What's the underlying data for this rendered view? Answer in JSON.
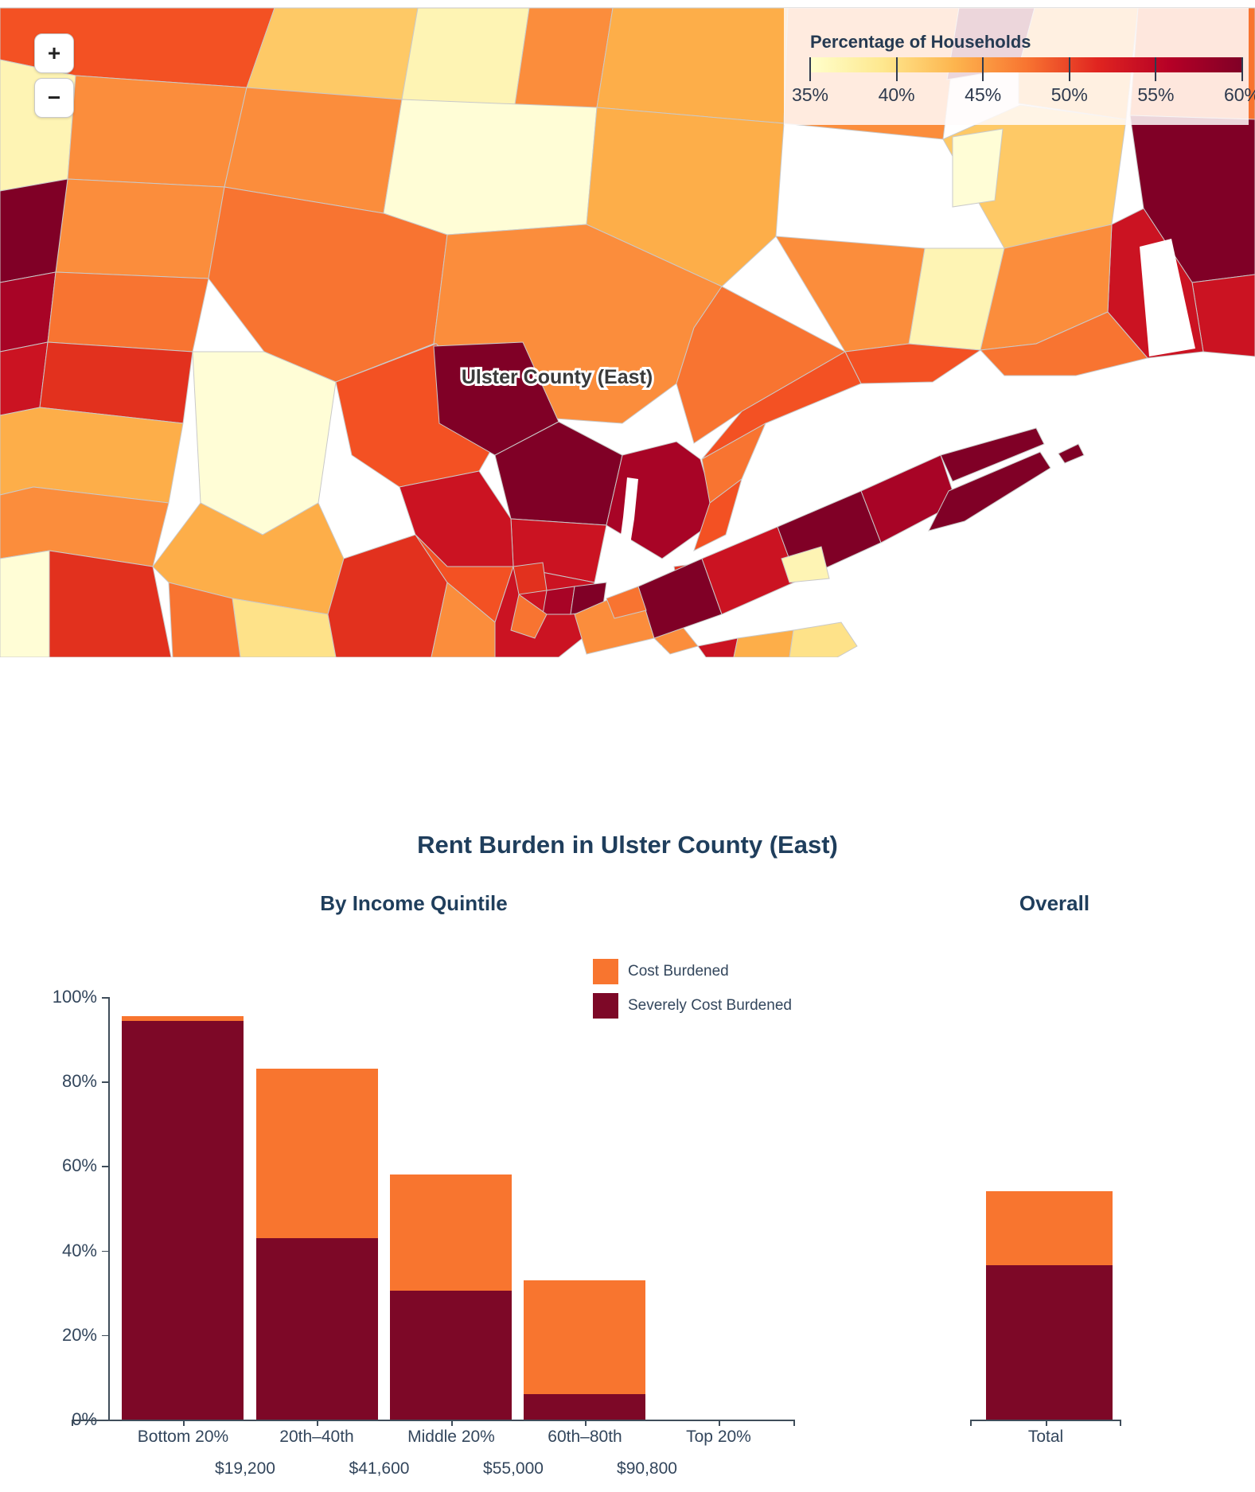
{
  "map": {
    "region_label": "Ulster County (East)",
    "zoom_in_label": "+",
    "zoom_out_label": "−",
    "legend": {
      "title": "Percentage of Households",
      "tick_labels": [
        "35%",
        "40%",
        "45%",
        "50%",
        "55%",
        "60%"
      ],
      "gradient_stops": [
        "#FFFFCC",
        "#FEE88F",
        "#FDB54E",
        "#F87531",
        "#E02420",
        "#B50026",
        "#800026"
      ]
    },
    "palette": {
      "C": "#FFFDD6",
      "PY": "#FEF4B4",
      "Y": "#FEE289",
      "LO": "#FEC966",
      "MO": "#FDAE49",
      "O": "#FB8D3C",
      "DO": "#F87431",
      "OR": "#F35123",
      "R": "#E2311E",
      "DR": "#CB1322",
      "CR": "#A80426",
      "M": "#800026",
      "W": "#FFFFFF"
    }
  },
  "chart": {
    "title": "Rent Burden in Ulster County (East)",
    "left_subtitle": "By Income Quintile",
    "right_subtitle": "Overall",
    "legend": [
      {
        "label": "Cost Burdened",
        "color": "#F8752F"
      },
      {
        "label": "Severely Cost Burdened",
        "color": "#7D0827"
      }
    ]
  },
  "chart_data": {
    "type": "bar",
    "stacked": true,
    "title": "Rent Burden in Ulster County (East)",
    "categories": [
      "Bottom 20%",
      "20th–40th",
      "Middle 20%",
      "60th–80th",
      "Top 20%"
    ],
    "income_boundary_labels": [
      "$19,200",
      "$41,600",
      "$55,000",
      "$90,800"
    ],
    "series": [
      {
        "name": "Severely Cost Burdened",
        "color": "#7D0827",
        "values": [
          94.3,
          43,
          30.5,
          6,
          0
        ]
      },
      {
        "name": "Cost Burdened",
        "color": "#F8752F",
        "values": [
          1.2,
          40,
          27.5,
          27,
          0
        ]
      }
    ],
    "overall": {
      "category": "Total",
      "severely_cost_burdened": 36.5,
      "cost_burdened": 17.5
    },
    "y_ticks": [
      "0%",
      "20%",
      "40%",
      "60%",
      "80%",
      "100%"
    ],
    "ylim": [
      0,
      100
    ],
    "ylabel": "",
    "xlabel": "",
    "grid": false,
    "legend_position": "top-center"
  }
}
